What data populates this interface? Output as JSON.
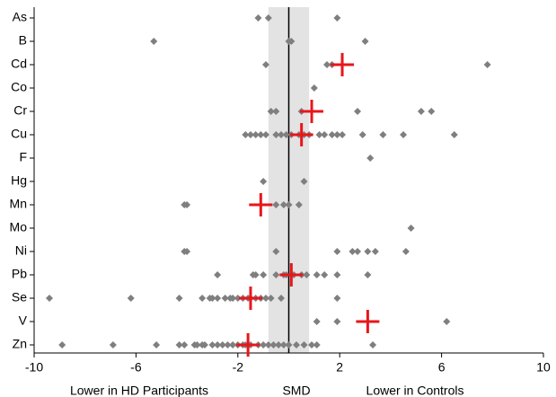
{
  "chart_data": {
    "type": "dot",
    "categories": [
      "As",
      "B",
      "Cd",
      "Co",
      "Cr",
      "Cu",
      "F",
      "Hg",
      "Mn",
      "Mo",
      "Ni",
      "Pb",
      "Se",
      "V",
      "Zn"
    ],
    "study_smd": [
      [
        -1.2,
        -0.8,
        1.9
      ],
      [
        -5.3,
        0.0,
        0.1,
        3.0
      ],
      [
        -0.9,
        1.5,
        1.7,
        7.8
      ],
      [
        1.0
      ],
      [
        -0.7,
        -0.5,
        0.5,
        2.7,
        5.2,
        5.6
      ],
      [
        -1.7,
        -1.5,
        -1.3,
        -1.1,
        -0.9,
        -0.5,
        -0.3,
        -0.1,
        0.1,
        0.4,
        0.6,
        0.8,
        1.2,
        1.4,
        1.7,
        1.9,
        2.1,
        2.9,
        3.7,
        4.5,
        6.5
      ],
      [
        3.2
      ],
      [
        -1.0,
        0.6
      ],
      [
        -4.1,
        -4.0,
        -0.5,
        -0.2,
        0.0,
        0.4
      ],
      [
        4.8
      ],
      [
        -4.1,
        -4.0,
        -0.5,
        1.9,
        2.5,
        2.7,
        3.1,
        3.4,
        4.6
      ],
      [
        -2.8,
        -1.4,
        -1.3,
        -1.0,
        -0.5,
        -0.2,
        -0.1,
        0.2,
        0.5,
        0.7,
        1.1,
        1.4,
        1.9,
        3.1
      ],
      [
        -9.4,
        -6.2,
        -4.3,
        -3.4,
        -3.1,
        -3.0,
        -2.8,
        -2.5,
        -2.3,
        -2.2,
        -2.0,
        -1.8,
        -1.6,
        -1.5,
        -1.3,
        -1.1,
        -0.9,
        -0.7,
        -0.3,
        1.9
      ],
      [
        1.1,
        1.9,
        6.2
      ],
      [
        -8.9,
        -6.9,
        -5.2,
        -4.3,
        -4.1,
        -3.7,
        -3.6,
        -3.4,
        -3.3,
        -3.0,
        -2.8,
        -2.6,
        -2.4,
        -2.2,
        -2.0,
        -1.8,
        -1.7,
        -1.5,
        -1.2,
        -1.0,
        -0.8,
        -0.6,
        -0.4,
        -0.2,
        0.0,
        0.3,
        0.6,
        0.9,
        1.1,
        3.3
      ]
    ],
    "pooled_smd": [
      null,
      null,
      2.1,
      null,
      0.9,
      0.5,
      null,
      null,
      -1.1,
      null,
      null,
      0.1,
      -1.5,
      3.1,
      -1.6
    ],
    "study_color": "#7f7f7f",
    "pooled_color": "#e8161b",
    "shaded_range": [
      -0.8,
      0.8
    ],
    "shade_color": "#e3e3e3",
    "reference_line": 0,
    "xlim": [
      -10,
      10
    ],
    "xticks": [
      -10,
      -6,
      -2,
      2,
      6,
      10
    ],
    "x_labels": [
      "Lower in HD Participants",
      "SMD",
      "Lower in Controls"
    ]
  }
}
